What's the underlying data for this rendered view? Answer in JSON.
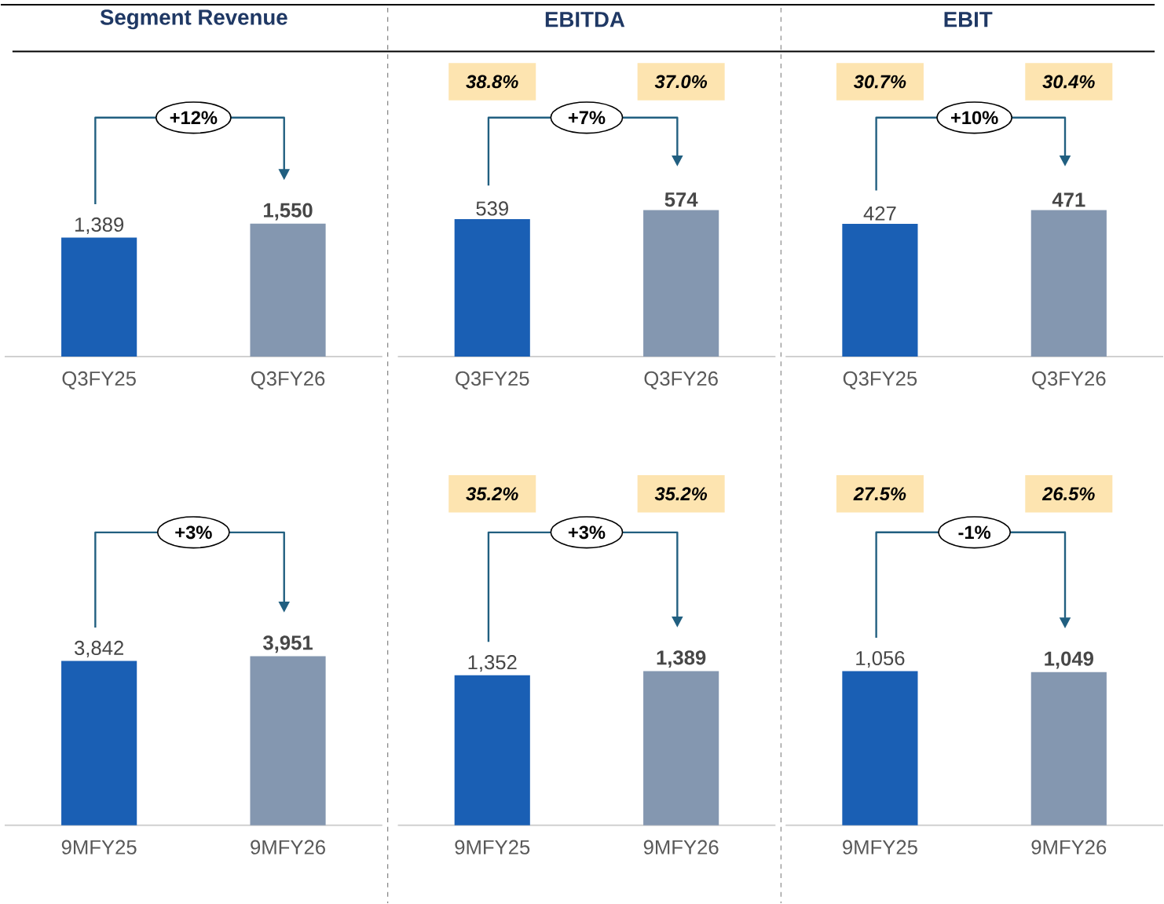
{
  "chart_data": [
    {
      "type": "bar",
      "title": "Segment Revenue",
      "categories": [
        "Q3FY25",
        "Q3FY26"
      ],
      "values": [
        1389,
        1550
      ],
      "colors": [
        "#1a5fb4",
        "#8497b0"
      ],
      "value_labels": [
        "1,389",
        "1,550"
      ],
      "annotations": [
        "+12%"
      ]
    },
    {
      "type": "bar",
      "title": "EBITDA",
      "categories": [
        "Q3FY25",
        "Q3FY26"
      ],
      "values": [
        539,
        574
      ],
      "colors": [
        "#1a5fb4",
        "#8497b0"
      ],
      "value_labels": [
        "539",
        "574"
      ],
      "annotations": [
        "+7%",
        "38.8%",
        "37.0%"
      ]
    },
    {
      "type": "bar",
      "title": "EBIT",
      "categories": [
        "Q3FY25",
        "Q3FY26"
      ],
      "values": [
        427,
        471
      ],
      "colors": [
        "#1a5fb4",
        "#8497b0"
      ],
      "value_labels": [
        "427",
        "471"
      ],
      "annotations": [
        "+10%",
        "30.7%",
        "30.4%"
      ]
    },
    {
      "type": "bar",
      "categories": [
        "9MFY25",
        "9MFY26"
      ],
      "values": [
        3842,
        3951
      ],
      "colors": [
        "#1a5fb4",
        "#8497b0"
      ],
      "value_labels": [
        "3,842",
        "3,951"
      ],
      "annotations": [
        "+3%"
      ]
    },
    {
      "type": "bar",
      "categories": [
        "9MFY25",
        "9MFY26"
      ],
      "values": [
        1352,
        1389
      ],
      "colors": [
        "#1a5fb4",
        "#8497b0"
      ],
      "value_labels": [
        "1,352",
        "1,389"
      ],
      "annotations": [
        "+3%",
        "35.2%",
        "35.2%"
      ]
    },
    {
      "type": "bar",
      "categories": [
        "9MFY25",
        "9MFY26"
      ],
      "values": [
        1056,
        1049
      ],
      "colors": [
        "#1a5fb4",
        "#8497b0"
      ],
      "value_labels": [
        "1,056",
        "1,049"
      ],
      "annotations": [
        "-1%",
        "27.5%",
        "26.5%"
      ]
    }
  ]
}
